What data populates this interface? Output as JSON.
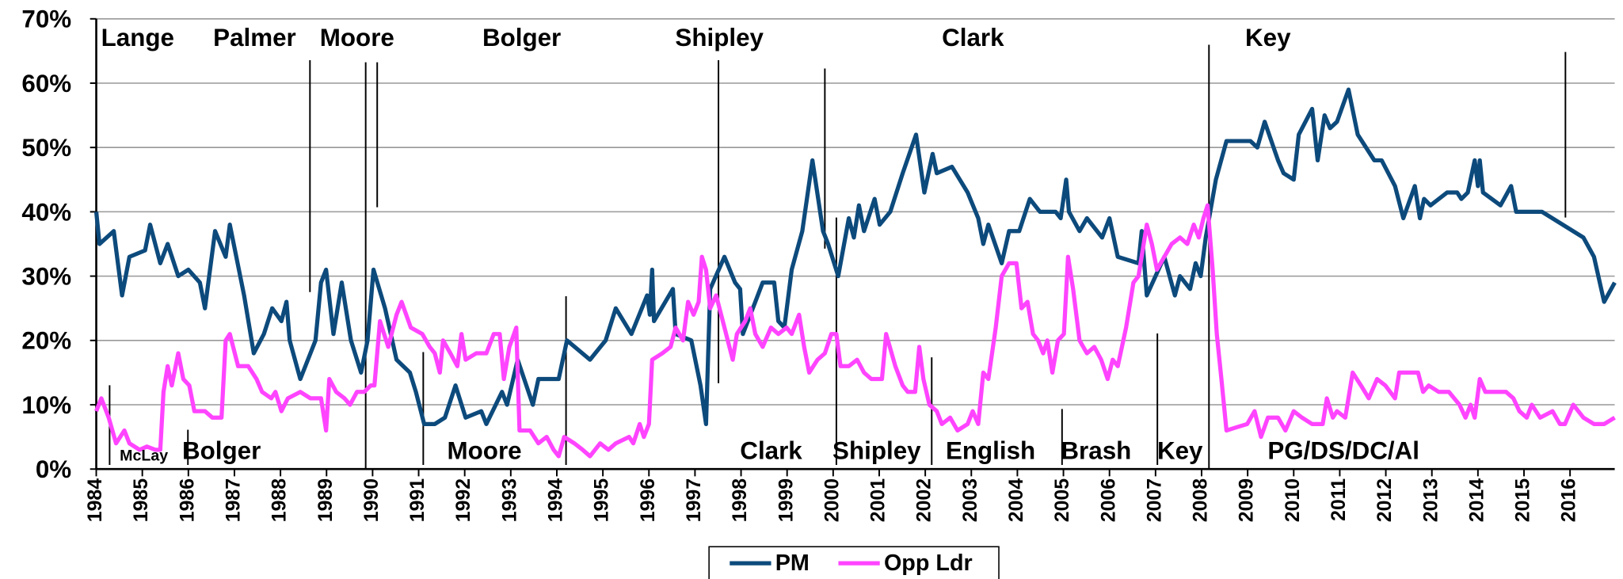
{
  "chart_data": {
    "type": "line",
    "ylim": [
      0,
      70
    ],
    "yticks": [
      {
        "value": 0,
        "label": "0%"
      },
      {
        "value": 10,
        "label": "10%"
      },
      {
        "value": 20,
        "label": "20%"
      },
      {
        "value": 30,
        "label": "30%"
      },
      {
        "value": 40,
        "label": "40%"
      },
      {
        "value": 50,
        "label": "50%"
      },
      {
        "value": 60,
        "label": "60%"
      },
      {
        "value": 70,
        "label": "70%"
      }
    ],
    "xlim": [
      1984,
      2016.97
    ],
    "xticks": [
      1984,
      1985,
      1986,
      1987,
      1988,
      1989,
      1990,
      1991,
      1992,
      1993,
      1994,
      1995,
      1996,
      1997,
      1998,
      1999,
      2000,
      2001,
      2002,
      2003,
      2004,
      2005,
      2006,
      2007,
      2008,
      2009,
      2010,
      2011,
      2012,
      2013,
      2014,
      2015,
      2016
    ],
    "grid": true,
    "legend": "bottom",
    "series": [
      {
        "name": "PM",
        "color": "#0d4a7c",
        "x": [
          1984.0,
          1984.07,
          1984.38,
          1984.56,
          1984.72,
          1985.06,
          1985.17,
          1985.39,
          1985.55,
          1985.78,
          1986.0,
          1986.25,
          1986.36,
          1986.58,
          1986.81,
          1986.9,
          1987.21,
          1987.42,
          1987.64,
          1987.82,
          1988.02,
          1988.13,
          1988.2,
          1988.43,
          1988.76,
          1988.88,
          1988.99,
          1989.15,
          1989.33,
          1989.53,
          1989.75,
          1989.89,
          1990.02,
          1990.27,
          1990.52,
          1990.81,
          1990.94,
          1991.12,
          1991.35,
          1991.57,
          1991.8,
          1992.02,
          1992.36,
          1992.47,
          1992.81,
          1992.92,
          1993.15,
          1993.48,
          1993.6,
          1994.04,
          1994.22,
          1994.72,
          1995.06,
          1995.28,
          1995.62,
          1995.96,
          1996.02,
          1996.07,
          1996.11,
          1996.52,
          1996.58,
          1996.92,
          1997.12,
          1997.24,
          1997.33,
          1997.64,
          1997.87,
          1997.98,
          1998.04,
          1998.31,
          1998.47,
          1998.72,
          1998.81,
          1998.94,
          1999.1,
          1999.33,
          1999.55,
          1999.78,
          1999.89,
          2000.11,
          2000.34,
          2000.45,
          2000.56,
          2000.67,
          2000.9,
          2001.01,
          2001.24,
          2001.51,
          2001.8,
          2001.98,
          2002.16,
          2002.25,
          2002.58,
          2002.92,
          2003.15,
          2003.26,
          2003.37,
          2003.66,
          2003.82,
          2004.04,
          2004.27,
          2004.49,
          2004.83,
          2004.94,
          2005.06,
          2005.12,
          2005.35,
          2005.51,
          2005.84,
          2006.0,
          2006.18,
          2006.63,
          2006.7,
          2006.81,
          2007.19,
          2007.42,
          2007.53,
          2007.75,
          2007.87,
          2007.98,
          2008.09,
          2008.31,
          2008.54,
          2009.06,
          2009.21,
          2009.37,
          2009.66,
          2009.78,
          2010.0,
          2010.11,
          2010.4,
          2010.52,
          2010.67,
          2010.79,
          2010.94,
          2011.19,
          2011.39,
          2011.75,
          2011.91,
          2012.2,
          2012.38,
          2012.63,
          2012.74,
          2012.83,
          2012.97,
          2013.33,
          2013.55,
          2013.64,
          2013.78,
          2013.93,
          2014.0,
          2014.04,
          2014.11,
          2014.49,
          2014.72,
          2014.83,
          2015.39,
          2015.84,
          2016.29,
          2016.52,
          2016.74,
          2016.97
        ],
        "values": [
          40,
          35,
          37,
          27,
          33,
          34,
          38,
          32,
          35,
          30,
          31,
          29,
          25,
          37,
          33,
          38,
          27,
          18,
          21,
          25,
          23,
          26,
          20,
          14,
          20,
          29,
          31,
          21,
          29,
          20,
          15,
          20,
          31,
          25,
          17,
          15,
          12,
          7,
          7,
          8,
          13,
          8,
          9,
          7,
          12,
          10,
          17,
          10,
          14,
          14,
          20,
          17,
          20,
          25,
          21,
          27,
          24,
          31,
          23,
          28,
          21,
          20,
          13,
          7,
          28,
          33,
          29,
          28,
          21,
          26,
          29,
          29,
          23,
          22,
          31,
          37,
          48,
          37,
          35,
          30,
          39,
          36,
          41,
          37,
          42,
          38,
          40,
          46,
          52,
          43,
          49,
          46,
          47,
          43,
          39,
          35,
          38,
          32,
          37,
          37,
          42,
          40,
          40,
          39,
          45,
          40,
          37,
          39,
          36,
          39,
          33,
          32,
          37,
          27,
          33,
          27,
          30,
          28,
          32,
          30,
          36,
          45,
          51,
          51,
          50,
          54,
          48,
          46,
          45,
          52,
          56,
          48,
          55,
          53,
          54,
          59,
          52,
          48,
          48,
          44,
          39,
          44,
          39,
          42,
          41,
          43,
          43,
          42,
          43,
          48,
          44,
          48,
          43,
          41,
          44,
          40,
          40,
          38,
          36,
          33,
          26,
          29
        ]
      },
      {
        "name": "Opp Ldr",
        "color": "#ff44ff",
        "x": [
          1984.0,
          1984.11,
          1984.27,
          1984.43,
          1984.61,
          1984.72,
          1984.94,
          1985.1,
          1985.28,
          1985.39,
          1985.46,
          1985.55,
          1985.64,
          1985.78,
          1985.89,
          1986.02,
          1986.13,
          1986.36,
          1986.52,
          1986.72,
          1986.81,
          1986.9,
          1987.08,
          1987.3,
          1987.48,
          1987.6,
          1987.8,
          1987.89,
          1988.02,
          1988.16,
          1988.43,
          1988.65,
          1988.88,
          1988.99,
          1989.06,
          1989.21,
          1989.39,
          1989.51,
          1989.66,
          1989.82,
          1989.96,
          1990.04,
          1990.16,
          1990.34,
          1990.52,
          1990.63,
          1990.83,
          1991.08,
          1991.24,
          1991.35,
          1991.46,
          1991.53,
          1991.69,
          1991.84,
          1991.93,
          1992.02,
          1992.25,
          1992.47,
          1992.63,
          1992.76,
          1992.85,
          1992.97,
          1993.12,
          1993.19,
          1993.42,
          1993.6,
          1993.78,
          1993.93,
          1994.04,
          1994.16,
          1994.38,
          1994.56,
          1994.72,
          1994.94,
          1995.12,
          1995.28,
          1995.57,
          1995.66,
          1995.8,
          1995.89,
          1996.0,
          1996.07,
          1996.29,
          1996.47,
          1996.58,
          1996.74,
          1996.85,
          1996.97,
          1997.08,
          1997.15,
          1997.24,
          1997.33,
          1997.46,
          1997.64,
          1997.82,
          1997.91,
          1998.09,
          1998.2,
          1998.31,
          1998.47,
          1998.65,
          1998.81,
          1998.99,
          1999.1,
          1999.26,
          1999.37,
          1999.48,
          1999.66,
          1999.82,
          1999.96,
          2000.07,
          2000.16,
          2000.34,
          2000.52,
          2000.67,
          2000.83,
          2001.06,
          2001.15,
          2001.35,
          2001.51,
          2001.62,
          2001.78,
          2001.87,
          2001.96,
          2002.09,
          2002.25,
          2002.36,
          2002.54,
          2002.7,
          2002.92,
          2003.03,
          2003.15,
          2003.26,
          2003.37,
          2003.53,
          2003.66,
          2003.82,
          2003.98,
          2004.09,
          2004.22,
          2004.34,
          2004.45,
          2004.56,
          2004.65,
          2004.76,
          2004.88,
          2005.01,
          2005.1,
          2005.21,
          2005.35,
          2005.51,
          2005.67,
          2005.82,
          2005.96,
          2006.07,
          2006.18,
          2006.36,
          2006.52,
          2006.63,
          2006.81,
          2006.92,
          2007.03,
          2007.19,
          2007.35,
          2007.53,
          2007.69,
          2007.83,
          2007.94,
          2008.04,
          2008.13,
          2008.24,
          2008.33,
          2008.43,
          2008.54,
          2008.76,
          2008.99,
          2009.15,
          2009.29,
          2009.44,
          2009.66,
          2009.82,
          2010.0,
          2010.18,
          2010.4,
          2010.63,
          2010.72,
          2010.85,
          2010.94,
          2011.12,
          2011.28,
          2011.46,
          2011.63,
          2011.81,
          2011.99,
          2012.2,
          2012.29,
          2012.7,
          2012.81,
          2012.93,
          2013.15,
          2013.37,
          2013.6,
          2013.73,
          2013.84,
          2013.93,
          2014.04,
          2014.16,
          2014.61,
          2014.77,
          2014.9,
          2015.06,
          2015.17,
          2015.35,
          2015.62,
          2015.78,
          2015.89,
          2016.07,
          2016.29,
          2016.52,
          2016.74,
          2016.97
        ],
        "values": [
          9,
          11,
          8,
          4,
          6,
          4,
          3,
          3.5,
          3,
          3,
          12,
          16,
          13,
          18,
          14,
          13,
          9,
          9,
          8,
          8,
          20,
          21,
          16,
          16,
          14,
          12,
          11,
          12,
          9,
          11,
          12,
          11,
          11,
          6,
          14,
          12,
          11,
          10,
          12,
          12,
          13,
          13,
          23,
          19,
          24,
          26,
          22,
          21,
          19,
          18,
          15,
          20,
          18,
          16,
          21,
          17,
          18,
          18,
          21,
          21,
          14,
          19,
          22,
          6,
          6,
          4,
          5,
          3,
          2,
          5,
          4,
          3,
          2,
          4,
          3,
          4,
          5,
          4,
          7,
          5,
          7,
          17,
          18,
          19,
          22,
          20,
          26,
          24,
          26,
          33,
          31,
          25,
          27,
          22,
          17,
          21,
          23,
          25,
          21,
          19,
          22,
          21,
          22,
          21,
          24,
          19,
          15,
          17,
          18,
          21,
          21,
          16,
          16,
          17,
          15,
          14,
          14,
          21,
          16,
          13,
          12,
          12,
          19,
          14,
          10,
          9,
          7,
          8,
          6,
          7,
          9,
          7,
          15,
          14,
          22,
          30,
          32,
          32,
          25,
          26,
          21,
          20,
          18,
          20,
          15,
          20,
          21,
          33,
          28,
          20,
          18,
          19,
          17,
          14,
          17,
          16,
          22,
          29,
          30,
          38,
          35,
          31,
          33,
          35,
          36,
          35,
          38,
          36,
          39,
          41,
          31,
          21,
          14,
          6,
          6.5,
          7,
          9,
          5,
          8,
          8,
          6,
          9,
          8,
          7,
          7,
          11,
          8,
          9,
          8,
          15,
          13,
          11,
          14,
          13,
          11,
          15,
          15,
          12,
          13,
          12,
          12,
          10,
          8,
          10,
          8,
          14,
          12,
          12,
          11,
          9,
          8,
          10,
          8,
          9,
          7,
          7,
          10,
          8,
          7,
          7,
          8
        ]
      }
    ],
    "annotations": {
      "top": [
        "Lange",
        "Palmer",
        "Moore",
        "Bolger",
        "Shipley",
        "Clark",
        "Key"
      ],
      "bottom": [
        "McLay",
        "Bolger",
        "Moore",
        "Clark",
        "Shipley",
        "English",
        "Brash",
        "Key",
        "PG/DS/DC/Al"
      ]
    },
    "leader_changes": {
      "pm": [
        1988.64,
        1989.85,
        1990.1,
        1997.51,
        1999.82,
        2008.16,
        2015.9
      ],
      "opp": [
        1984.29,
        1985.99,
        1991.1,
        1994.2,
        2000.07,
        2002.14,
        2004.97,
        2007.04
      ]
    }
  }
}
